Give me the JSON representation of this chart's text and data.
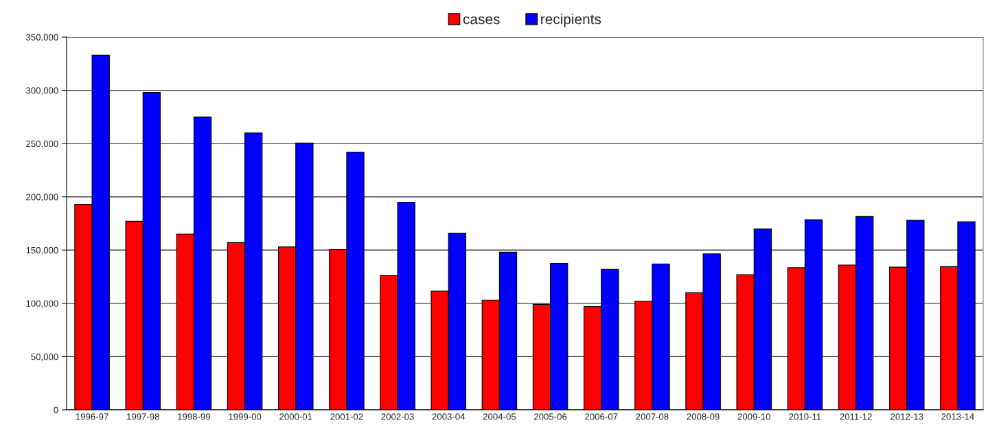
{
  "chart_data": {
    "type": "bar",
    "categories": [
      "1996-97",
      "1997-98",
      "1998-99",
      "1999-00",
      "2000-01",
      "2001-02",
      "2002-03",
      "2003-04",
      "2004-05",
      "2005-06",
      "2006-07",
      "2007-08",
      "2008-09",
      "2009-10",
      "2010-11",
      "2011-12",
      "2012-13",
      "2013-14"
    ],
    "series": [
      {
        "name": "cases",
        "color": "#ff0000",
        "values": [
          193000,
          177000,
          165000,
          157000,
          153000,
          150500,
          126000,
          111500,
          103000,
          99000,
          97000,
          102000,
          110000,
          127000,
          133500,
          136000,
          134000,
          134500
        ]
      },
      {
        "name": "recipients",
        "color": "#0000ff",
        "values": [
          333000,
          298000,
          275000,
          260000,
          250500,
          242000,
          195000,
          166000,
          148000,
          137500,
          132000,
          137000,
          146500,
          170000,
          178500,
          181500,
          178000,
          176500
        ]
      }
    ],
    "ylim": [
      0,
      350000
    ],
    "yticks": [
      {
        "value": 0,
        "label": "0"
      },
      {
        "value": 50000,
        "label": "50,000"
      },
      {
        "value": 100000,
        "label": "100,000"
      },
      {
        "value": 150000,
        "label": "150,000"
      },
      {
        "value": 200000,
        "label": "200,000"
      },
      {
        "value": 250000,
        "label": "250,000"
      },
      {
        "value": 300000,
        "label": "300,000"
      },
      {
        "value": 350000,
        "label": "350,000"
      }
    ],
    "grid": "y",
    "legend": "top"
  }
}
